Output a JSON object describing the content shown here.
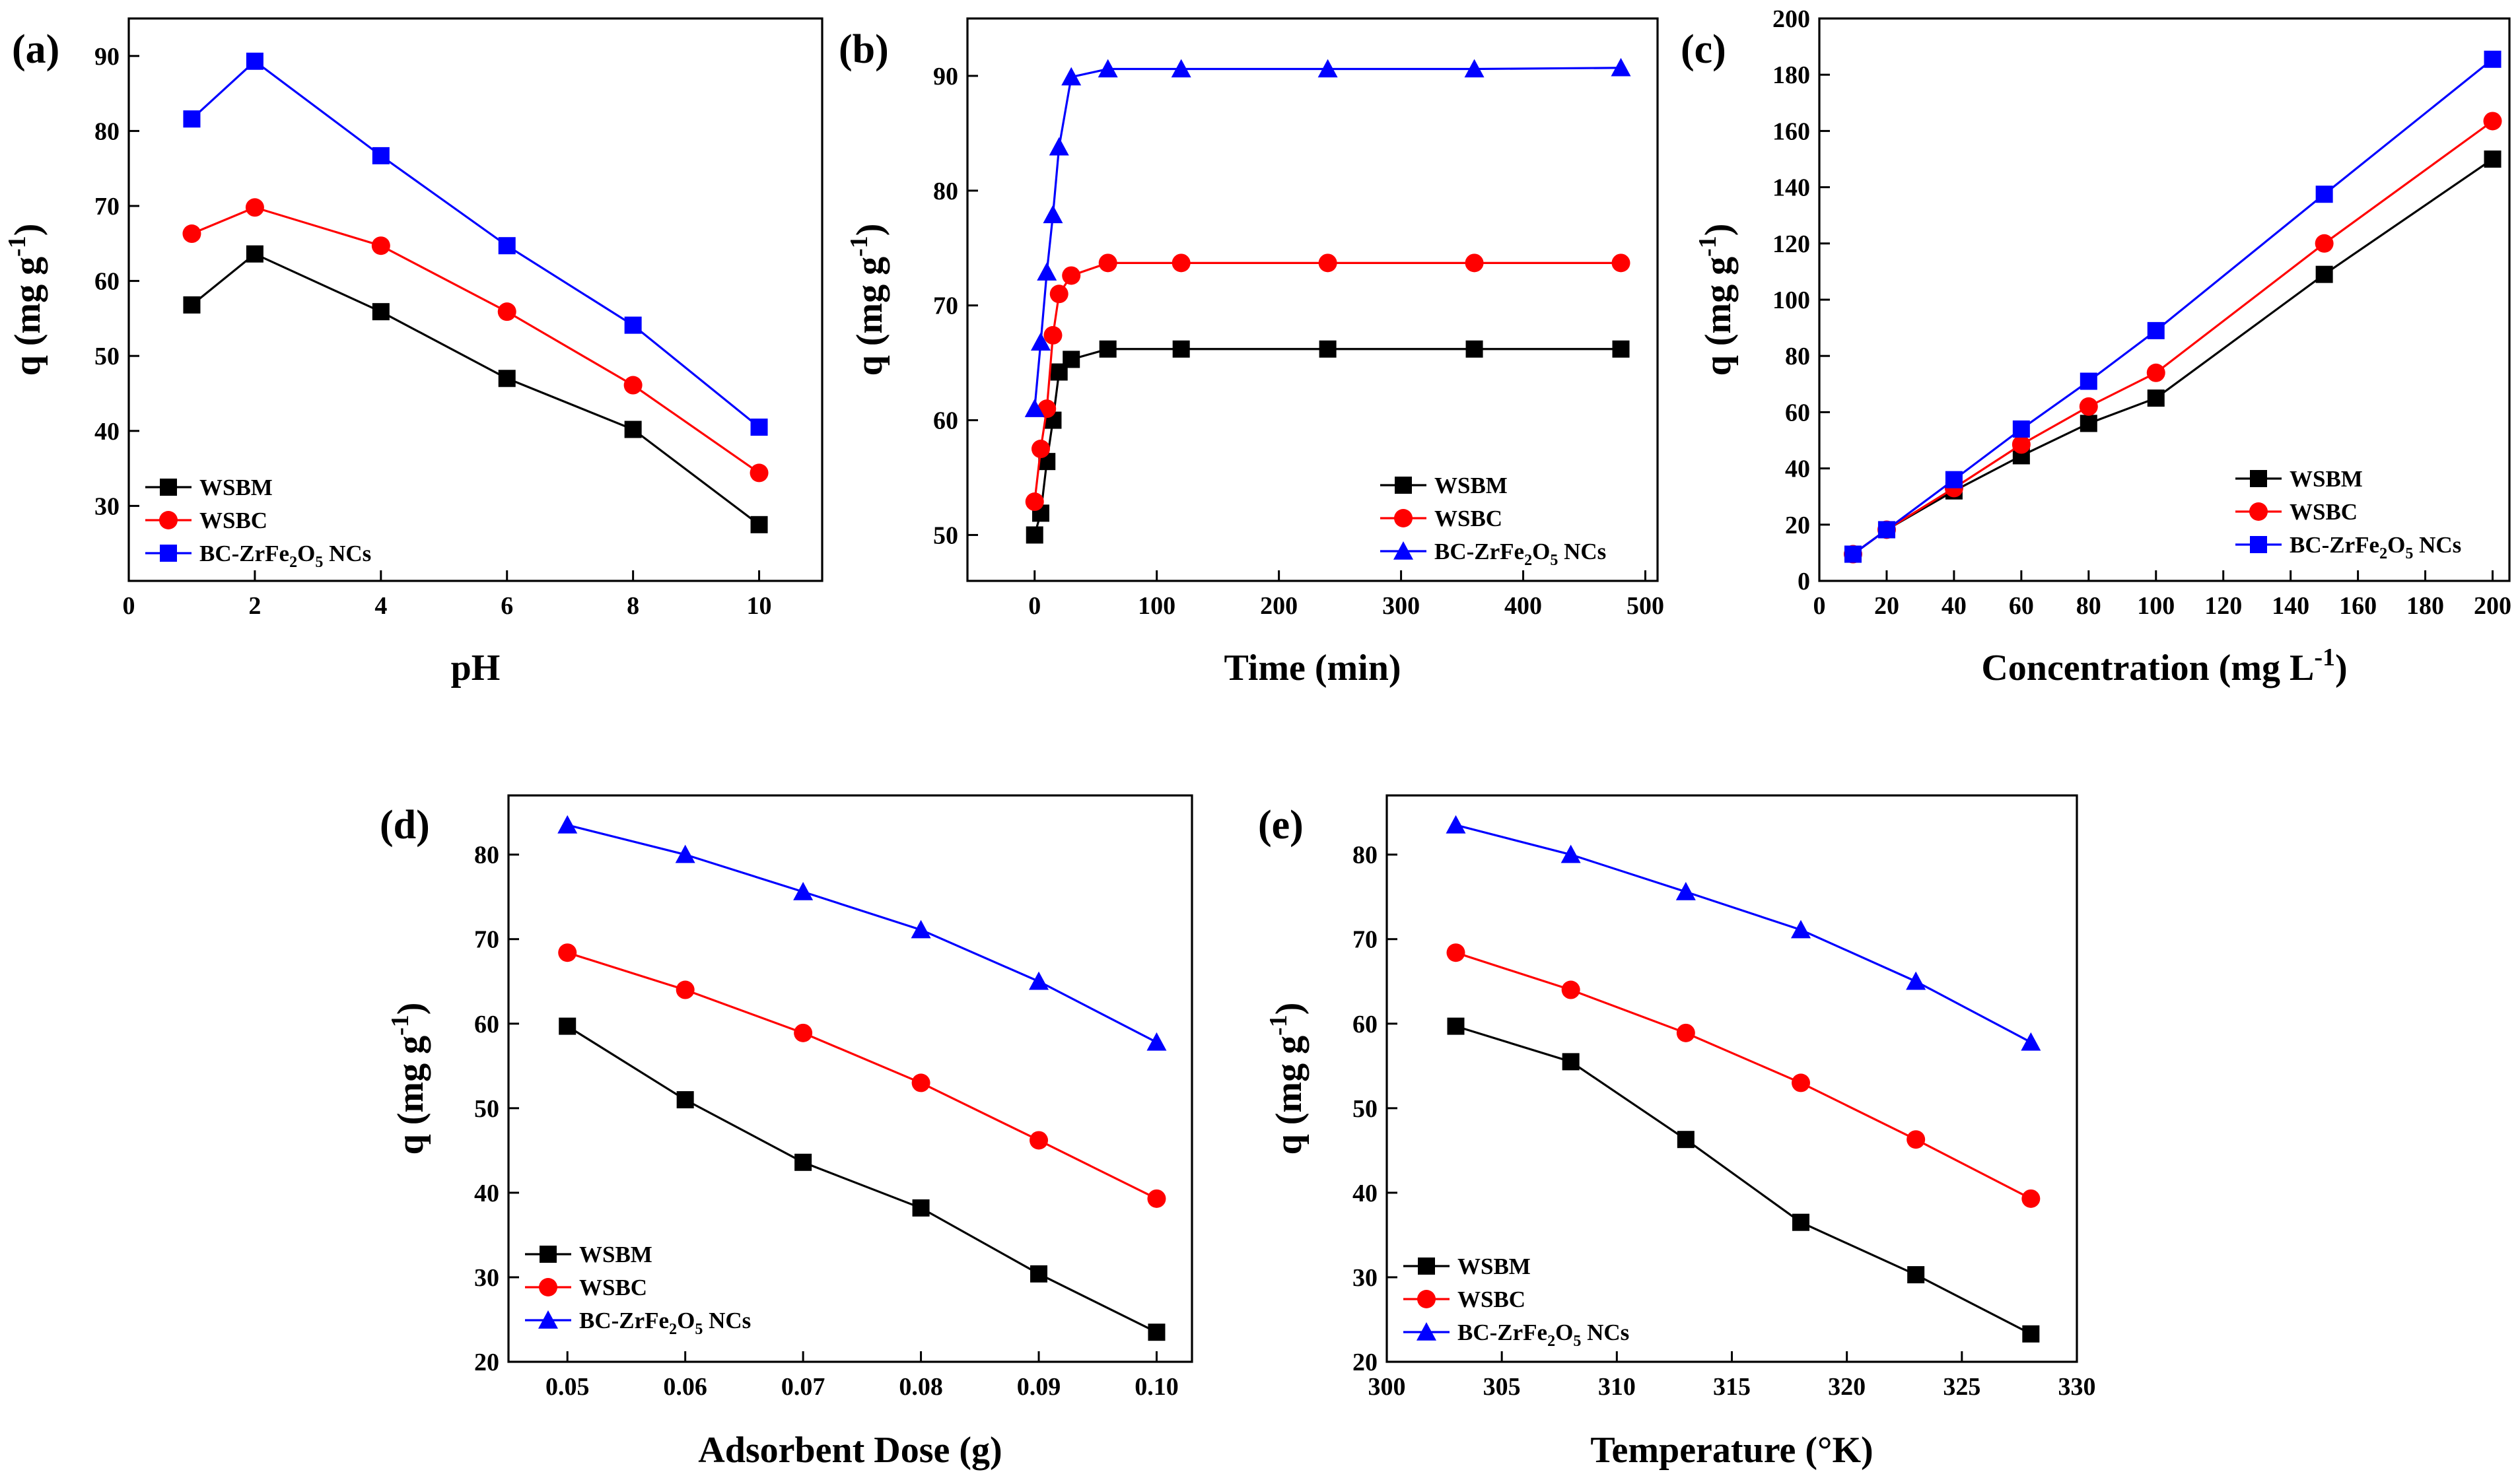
{
  "colors": {
    "WSBM": "#000000",
    "WSBC": "#ff0000",
    "BC-ZrFe2O5 NCs": "#0000ff"
  },
  "chart_data": [
    {
      "panel": "(a)",
      "type": "line",
      "xlabel": "pH",
      "ylabel": "q (mg g-1)",
      "xlim": [
        0,
        11
      ],
      "ylim": [
        20,
        95
      ],
      "xticks": [
        "0",
        "2",
        "4",
        "6",
        "8",
        "10"
      ],
      "yticks": [
        "30",
        "40",
        "50",
        "60",
        "70",
        "80",
        "90"
      ],
      "legend_position": "bottom-left",
      "x": [
        1,
        2,
        4,
        6,
        8,
        10
      ],
      "series": [
        {
          "name": "WSBM",
          "marker": "square",
          "values": [
            56.8,
            63.6,
            55.9,
            47.0,
            40.2,
            27.5
          ]
        },
        {
          "name": "WSBC",
          "marker": "circle",
          "values": [
            66.3,
            69.8,
            64.7,
            55.9,
            46.1,
            34.4
          ]
        },
        {
          "name": "BC-ZrFe2O5 NCs",
          "marker": "square",
          "values": [
            81.6,
            89.3,
            76.7,
            64.7,
            54.1,
            40.5
          ]
        }
      ]
    },
    {
      "panel": "(b)",
      "type": "line",
      "xlabel": "Time (min)",
      "ylabel": "q (mg g-1)",
      "xlim": [
        -55,
        510
      ],
      "ylim": [
        46,
        95
      ],
      "xticks": [
        "0",
        "100",
        "200",
        "300",
        "400",
        "500"
      ],
      "yticks": [
        "50",
        "60",
        "70",
        "80",
        "90"
      ],
      "legend_position": "bottom-right",
      "x": [
        0,
        5,
        10,
        15,
        20,
        30,
        60,
        120,
        240,
        360,
        480
      ],
      "series": [
        {
          "name": "WSBM",
          "marker": "square",
          "values": [
            50.0,
            51.9,
            56.4,
            60.0,
            64.2,
            65.3,
            66.2,
            66.2,
            66.2,
            66.2,
            66.2
          ]
        },
        {
          "name": "WSBC",
          "marker": "circle",
          "values": [
            52.9,
            57.5,
            61.0,
            67.4,
            71.0,
            72.6,
            73.7,
            73.7,
            73.7,
            73.7,
            73.7
          ]
        },
        {
          "name": "BC-ZrFe2O5 NCs",
          "marker": "triangle",
          "values": [
            61.0,
            66.8,
            72.9,
            77.9,
            83.8,
            89.9,
            90.6,
            90.6,
            90.6,
            90.6,
            90.7
          ]
        }
      ]
    },
    {
      "panel": "(c)",
      "type": "line",
      "xlabel": "Concentration (mg L-1)",
      "ylabel": "q (mg g-1)",
      "xlim": [
        0,
        205
      ],
      "ylim": [
        0,
        200
      ],
      "xticks": [
        "0",
        "20",
        "40",
        "60",
        "80",
        "100",
        "120",
        "140",
        "160",
        "180",
        "200"
      ],
      "yticks": [
        "0",
        "20",
        "40",
        "60",
        "80",
        "100",
        "120",
        "140",
        "160",
        "180",
        "200"
      ],
      "legend_position": "bottom-right",
      "x": [
        10,
        20,
        40,
        60,
        80,
        100,
        150,
        200
      ],
      "series": [
        {
          "name": "WSBM",
          "marker": "square",
          "values": [
            9.5,
            18.2,
            32.0,
            44.5,
            56.0,
            65.0,
            109.0,
            150.0
          ]
        },
        {
          "name": "WSBC",
          "marker": "circle",
          "values": [
            9.5,
            18.2,
            33.0,
            48.5,
            62.0,
            74.0,
            120.0,
            163.5
          ]
        },
        {
          "name": "BC-ZrFe2O5 NCs",
          "marker": "square",
          "values": [
            9.5,
            18.2,
            36.0,
            54.0,
            71.0,
            89.0,
            137.5,
            185.5
          ]
        }
      ]
    },
    {
      "panel": "(d)",
      "type": "line",
      "xlabel": "Adsorbent Dose (g)",
      "ylabel": "q (mg g-1)",
      "xlim": [
        0.045,
        0.103
      ],
      "ylim": [
        20,
        87
      ],
      "xticks": [
        "0.05",
        "0.06",
        "0.07",
        "0.08",
        "0.09",
        "0.10"
      ],
      "yticks": [
        "20",
        "30",
        "40",
        "50",
        "60",
        "70",
        "80"
      ],
      "legend_position": "bottom-left",
      "x": [
        0.05,
        0.06,
        0.07,
        0.08,
        0.09,
        0.1
      ],
      "series": [
        {
          "name": "WSBM",
          "marker": "square",
          "values": [
            59.7,
            51.0,
            43.6,
            38.2,
            30.4,
            23.5
          ]
        },
        {
          "name": "WSBC",
          "marker": "circle",
          "values": [
            68.4,
            64.0,
            58.9,
            53.0,
            46.2,
            39.3
          ]
        },
        {
          "name": "BC-ZrFe2O5 NCs",
          "marker": "triangle",
          "values": [
            83.5,
            80.0,
            75.6,
            71.1,
            65.0,
            57.8
          ]
        }
      ]
    },
    {
      "panel": "(e)",
      "type": "line",
      "xlabel": "Temperature (°K)",
      "ylabel": "q (mg g-1)",
      "xlim": [
        300,
        330
      ],
      "ylim": [
        20,
        87
      ],
      "xticks": [
        "300",
        "305",
        "310",
        "315",
        "320",
        "325",
        "330"
      ],
      "yticks": [
        "20",
        "30",
        "40",
        "50",
        "60",
        "70",
        "80"
      ],
      "legend_position": "bottom-left",
      "x": [
        303,
        308,
        313,
        318,
        323,
        328
      ],
      "series": [
        {
          "name": "WSBM",
          "marker": "square",
          "values": [
            59.7,
            55.5,
            46.3,
            36.5,
            30.3,
            23.3
          ]
        },
        {
          "name": "WSBC",
          "marker": "circle",
          "values": [
            68.4,
            64.0,
            58.9,
            53.0,
            46.3,
            39.3
          ]
        },
        {
          "name": "BC-ZrFe2O5 NCs",
          "marker": "triangle",
          "values": [
            83.5,
            80.0,
            75.6,
            71.1,
            65.0,
            57.8
          ]
        }
      ]
    }
  ]
}
